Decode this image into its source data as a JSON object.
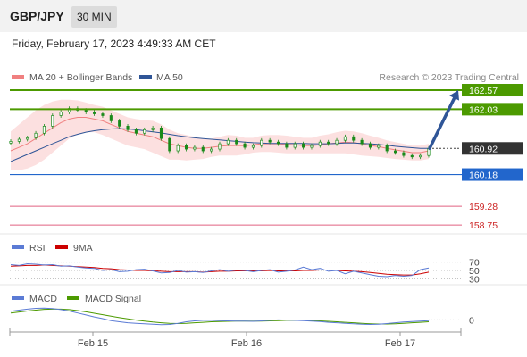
{
  "header": {
    "symbol": "GBP/JPY",
    "timeframe": "30 MIN",
    "datetime": "Friday, February 17, 2023 4:49:33 AM CET"
  },
  "legend": {
    "ma20_label": "MA 20 + Bollinger Bands",
    "ma50_label": "MA 50",
    "credit": "Research © 2023 Trading Central",
    "rsi_label": "RSI",
    "rsi_ma_label": "9MA",
    "macd_label": "MACD",
    "macd_signal_label": "MACD Signal"
  },
  "colors": {
    "price": "#1a8a1a",
    "ma20": "#f08080",
    "ma50": "#2f5597",
    "band": "#fbd5d5",
    "resistance": "#4c9a00",
    "pivot": "#2266cc",
    "support": "#e06080",
    "arrow": "#2f5597",
    "rsi": "#5b7bd5",
    "rsi_ma": "#cc0000",
    "macd": "#5b7bd5",
    "macd_signal": "#4c9a00"
  },
  "chart_data": [
    {
      "type": "line",
      "x_ticks": [
        "Feb 15",
        "Feb 16",
        "Feb 17"
      ],
      "ylim": [
        158.5,
        163.0
      ],
      "current_price": 160.92,
      "levels": [
        {
          "value": 162.57,
          "label": "162.57",
          "kind": "resistance"
        },
        {
          "value": 162.03,
          "label": "162.03",
          "kind": "resistance"
        },
        {
          "value": 160.92,
          "label": "160.92",
          "kind": "current"
        },
        {
          "value": 160.18,
          "label": "160.18",
          "kind": "pivot"
        },
        {
          "value": 159.28,
          "label": "159.28",
          "kind": "support"
        },
        {
          "value": 158.75,
          "label": "158.75",
          "kind": "support"
        }
      ],
      "projection": {
        "from": 160.92,
        "to": 162.57,
        "direction": "up"
      },
      "price": [
        161.12,
        161.18,
        161.22,
        161.35,
        161.55,
        161.85,
        161.95,
        162.05,
        162.0,
        161.95,
        161.9,
        161.85,
        161.7,
        161.55,
        161.45,
        161.35,
        161.45,
        161.5,
        161.2,
        160.85,
        161.0,
        160.9,
        160.95,
        160.85,
        160.9,
        161.05,
        161.15,
        161.05,
        160.95,
        161.0,
        161.15,
        161.1,
        161.05,
        160.95,
        161.05,
        160.95,
        161.0,
        161.1,
        161.05,
        161.15,
        161.25,
        161.15,
        161.05,
        160.95,
        161.0,
        160.85,
        160.8,
        160.72,
        160.68,
        160.72,
        160.92
      ],
      "ma20": [
        160.85,
        160.95,
        161.05,
        161.2,
        161.35,
        161.5,
        161.65,
        161.75,
        161.8,
        161.8,
        161.75,
        161.7,
        161.6,
        161.5,
        161.4,
        161.35,
        161.3,
        161.25,
        161.15,
        161.05,
        161.0,
        160.95,
        160.92,
        160.92,
        160.95,
        160.98,
        161.0,
        161.0,
        161.0,
        161.02,
        161.05,
        161.05,
        161.05,
        161.03,
        161.02,
        161.0,
        161.0,
        161.02,
        161.05,
        161.07,
        161.1,
        161.08,
        161.05,
        161.0,
        160.97,
        160.92,
        160.88,
        160.84,
        160.8,
        160.8,
        160.85
      ],
      "bb_upper": [
        161.4,
        161.6,
        161.8,
        162.0,
        162.15,
        162.25,
        162.3,
        162.3,
        162.28,
        162.22,
        162.15,
        162.1,
        162.0,
        161.9,
        161.8,
        161.75,
        161.72,
        161.7,
        161.6,
        161.45,
        161.35,
        161.3,
        161.25,
        161.2,
        161.2,
        161.25,
        161.3,
        161.28,
        161.22,
        161.22,
        161.28,
        161.3,
        161.3,
        161.28,
        161.25,
        161.22,
        161.22,
        161.28,
        161.32,
        161.38,
        161.42,
        161.4,
        161.35,
        161.28,
        161.22,
        161.15,
        161.1,
        161.05,
        161.0,
        161.0,
        161.05
      ],
      "bb_lower": [
        160.3,
        160.3,
        160.35,
        160.45,
        160.6,
        160.8,
        161.0,
        161.2,
        161.32,
        161.38,
        161.38,
        161.3,
        161.2,
        161.1,
        161.0,
        160.95,
        160.9,
        160.8,
        160.7,
        160.6,
        160.6,
        160.58,
        160.6,
        160.62,
        160.68,
        160.72,
        160.72,
        160.72,
        160.75,
        160.8,
        160.82,
        160.82,
        160.8,
        160.78,
        160.78,
        160.78,
        160.78,
        160.78,
        160.78,
        160.78,
        160.78,
        160.75,
        160.72,
        160.7,
        160.68,
        160.65,
        160.62,
        160.6,
        160.58,
        160.58,
        160.62
      ],
      "ma50": [
        160.55,
        160.65,
        160.75,
        160.85,
        160.95,
        161.05,
        161.15,
        161.25,
        161.32,
        161.38,
        161.42,
        161.45,
        161.47,
        161.48,
        161.47,
        161.45,
        161.42,
        161.39,
        161.36,
        161.32,
        161.28,
        161.25,
        161.22,
        161.2,
        161.18,
        161.16,
        161.14,
        161.12,
        161.1,
        161.08,
        161.07,
        161.06,
        161.06,
        161.06,
        161.06,
        161.06,
        161.05,
        161.05,
        161.05,
        161.06,
        161.07,
        161.07,
        161.06,
        161.05,
        161.03,
        161.01,
        160.98,
        160.96,
        160.94,
        160.92,
        160.92
      ]
    },
    {
      "type": "line",
      "ylim": [
        20,
        80
      ],
      "levels": [
        {
          "value": 70,
          "label": "70"
        },
        {
          "value": 50,
          "label": "50"
        },
        {
          "value": 30,
          "label": "30"
        }
      ],
      "rsi": [
        64,
        62,
        66,
        65,
        63,
        64,
        60,
        61,
        58,
        56,
        55,
        50,
        52,
        47,
        48,
        52,
        53,
        49,
        44,
        45,
        50,
        46,
        47,
        45,
        49,
        52,
        48,
        51,
        50,
        47,
        50,
        52,
        46,
        48,
        51,
        58,
        52,
        55,
        48,
        50,
        42,
        48,
        44,
        40,
        36,
        35,
        38,
        36,
        38,
        52,
        56
      ],
      "rsi_ma": [
        60,
        61,
        62,
        62,
        63,
        62,
        61,
        60,
        59,
        58,
        57,
        55,
        54,
        52,
        51,
        50,
        50,
        49,
        48,
        47,
        47,
        47,
        47,
        46,
        47,
        48,
        48,
        49,
        49,
        49,
        49,
        50,
        49,
        49,
        49,
        50,
        50,
        51,
        51,
        50,
        49,
        48,
        47,
        45,
        43,
        41,
        40,
        39,
        39,
        42,
        46
      ]
    },
    {
      "type": "line",
      "ylim": [
        -0.5,
        0.6
      ],
      "levels": [
        {
          "value": 0,
          "label": "0"
        }
      ],
      "macd": [
        0.35,
        0.4,
        0.44,
        0.47,
        0.48,
        0.46,
        0.42,
        0.36,
        0.28,
        0.2,
        0.12,
        0.05,
        -0.03,
        -0.08,
        -0.12,
        -0.14,
        -0.16,
        -0.18,
        -0.2,
        -0.19,
        -0.14,
        -0.08,
        -0.04,
        -0.02,
        -0.02,
        -0.03,
        -0.04,
        -0.05,
        -0.05,
        -0.06,
        -0.04,
        -0.02,
        0.0,
        -0.01,
        -0.02,
        -0.03,
        -0.05,
        -0.07,
        -0.1,
        -0.12,
        -0.14,
        -0.16,
        -0.18,
        -0.19,
        -0.18,
        -0.15,
        -0.12,
        -0.09,
        -0.07,
        -0.05,
        -0.03
      ],
      "macd_signal": [
        0.28,
        0.32,
        0.36,
        0.4,
        0.43,
        0.44,
        0.44,
        0.42,
        0.38,
        0.33,
        0.27,
        0.21,
        0.15,
        0.09,
        0.04,
        -0.01,
        -0.05,
        -0.09,
        -0.12,
        -0.14,
        -0.15,
        -0.14,
        -0.12,
        -0.1,
        -0.08,
        -0.07,
        -0.06,
        -0.05,
        -0.05,
        -0.05,
        -0.05,
        -0.04,
        -0.03,
        -0.02,
        -0.02,
        -0.02,
        -0.03,
        -0.04,
        -0.06,
        -0.08,
        -0.1,
        -0.12,
        -0.14,
        -0.16,
        -0.17,
        -0.17,
        -0.16,
        -0.14,
        -0.12,
        -0.1,
        -0.08
      ]
    }
  ]
}
